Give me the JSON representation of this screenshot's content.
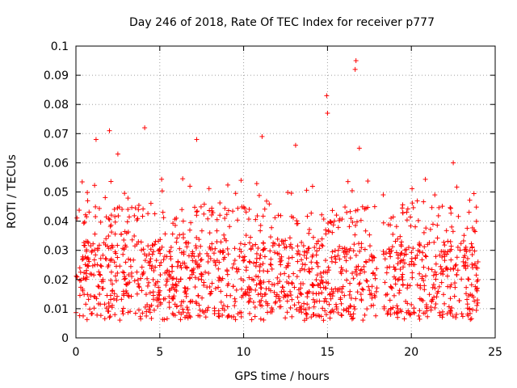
{
  "chart_data": {
    "type": "scatter",
    "title": "Day 246 of 2018, Rate Of TEC Index for receiver p777",
    "xlabel": "GPS time / hours",
    "ylabel": "ROTI / TECUs",
    "xlim": [
      0,
      25
    ],
    "ylim": [
      0,
      0.1
    ],
    "grid": true,
    "x_ticks": [
      "0",
      "5",
      "10",
      "15",
      "20",
      "25"
    ],
    "y_ticks": [
      "0",
      "0.01",
      "0.02",
      "0.03",
      "0.04",
      "0.05",
      "0.06",
      "0.07",
      "0.08",
      "0.09",
      "0.1"
    ],
    "marker": "+",
    "series_color": "#ff0000",
    "data_range_x": [
      0,
      24
    ],
    "typical_band": [
      0.01,
      0.03
    ],
    "gap_x": [
      17.95,
      18.3
    ],
    "highlighted_points": [
      {
        "x": 1.2,
        "y": 0.068
      },
      {
        "x": 2.0,
        "y": 0.071
      },
      {
        "x": 2.5,
        "y": 0.063
      },
      {
        "x": 4.1,
        "y": 0.072
      },
      {
        "x": 7.2,
        "y": 0.068
      },
      {
        "x": 11.1,
        "y": 0.069
      },
      {
        "x": 13.1,
        "y": 0.066
      },
      {
        "x": 14.95,
        "y": 0.083
      },
      {
        "x": 15.0,
        "y": 0.077
      },
      {
        "x": 16.7,
        "y": 0.095
      },
      {
        "x": 16.65,
        "y": 0.092
      },
      {
        "x": 16.9,
        "y": 0.065
      },
      {
        "x": 22.5,
        "y": 0.06
      }
    ]
  }
}
